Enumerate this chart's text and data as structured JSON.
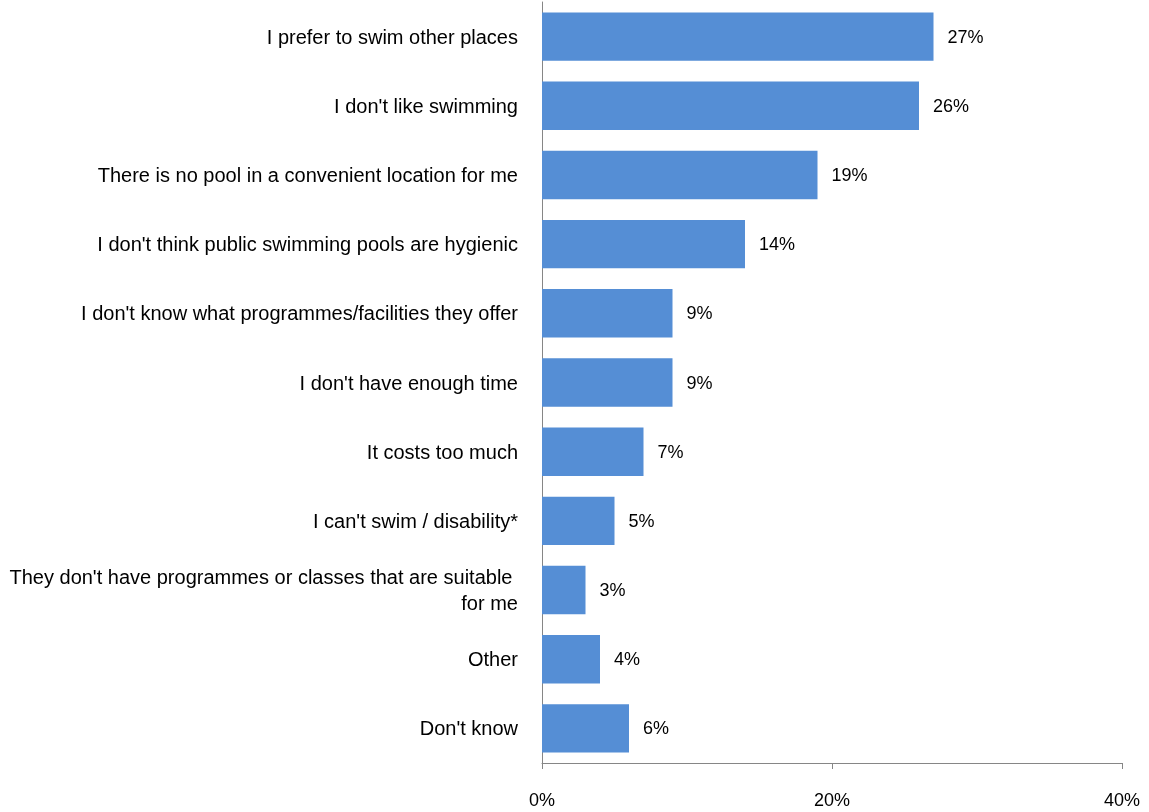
{
  "chart_data": {
    "type": "bar",
    "orientation": "horizontal",
    "categories": [
      "I prefer to swim other places",
      "I don't like swimming",
      "There is no pool in a convenient location for me",
      "I don't think public swimming pools are hygienic",
      "I don't know what programmes/facilities they offer",
      "I don't have enough time",
      "It costs too much",
      "I can't swim / disability*",
      "They don't have programmes or classes that are suitable for me",
      "Other",
      "Don't know"
    ],
    "values": [
      27,
      26,
      19,
      14,
      9,
      9,
      7,
      5,
      3,
      4,
      6
    ],
    "value_labels": [
      "27%",
      "26%",
      "19%",
      "14%",
      "9%",
      "9%",
      "7%",
      "5%",
      "3%",
      "4%",
      "6%"
    ],
    "color": "#558ed5",
    "xlim": [
      0,
      40
    ],
    "xticks": [
      {
        "value": 0,
        "label": "0%"
      },
      {
        "value": 20,
        "label": "20%"
      },
      {
        "value": 40,
        "label": "40%"
      }
    ],
    "grid": false
  }
}
